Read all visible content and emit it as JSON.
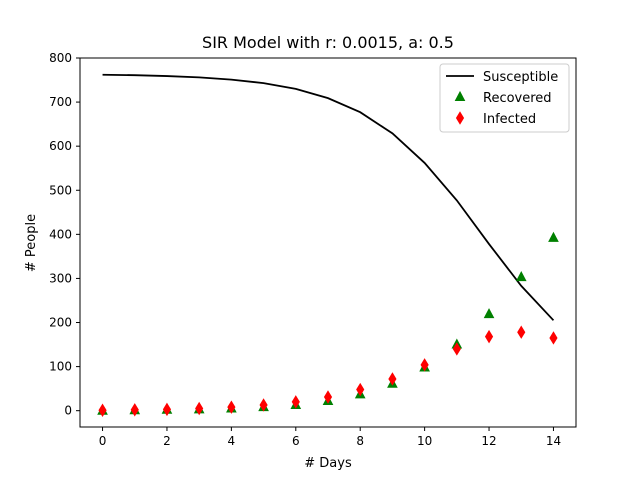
{
  "chart_data": {
    "type": "line",
    "title": "SIR Model with r: 0.0015, a: 0.5",
    "xlabel": "# Days",
    "ylabel": "# People",
    "xlim": [
      -0.7,
      14.7
    ],
    "ylim": [
      -37,
      800
    ],
    "xticks": [
      0,
      2,
      4,
      6,
      8,
      10,
      12,
      14
    ],
    "yticks": [
      0,
      100,
      200,
      300,
      400,
      500,
      600,
      700,
      800
    ],
    "grid": false,
    "legend_position": "top-right",
    "x": [
      0,
      1,
      2,
      3,
      4,
      5,
      6,
      7,
      8,
      9,
      10,
      11,
      12,
      13,
      14
    ],
    "series": [
      {
        "name": "Susceptible",
        "style": "line",
        "color": "#000000",
        "values": [
          762,
          761,
          759,
          756,
          751,
          743,
          730,
          709,
          677,
          629,
          562,
          477,
          378,
          283,
          205
        ]
      },
      {
        "name": "Recovered",
        "style": "triangle-marker",
        "color": "#008000",
        "values": [
          0,
          1,
          2,
          3,
          5,
          8,
          13,
          22,
          37,
          61,
          98,
          150,
          219,
          303,
          392
        ]
      },
      {
        "name": "Infected",
        "style": "diamond-marker",
        "color": "#ff0000",
        "values": [
          1,
          2,
          3,
          5,
          8,
          13,
          20,
          31,
          48,
          72,
          104,
          140,
          168,
          178,
          165
        ]
      }
    ]
  }
}
